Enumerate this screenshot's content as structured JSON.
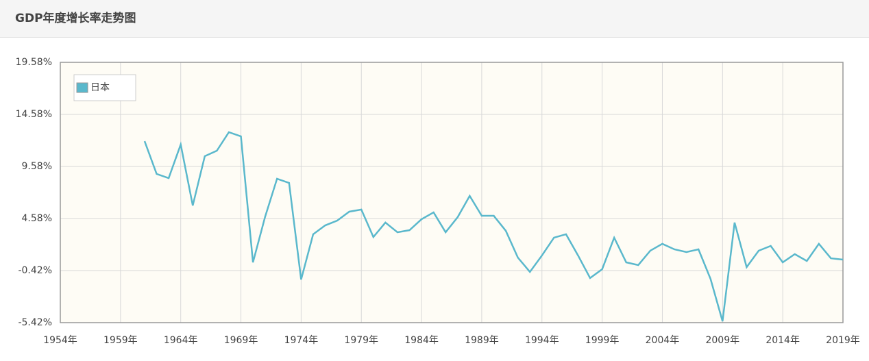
{
  "header": {
    "title": "GDP年度增长率走势图"
  },
  "chart_data": {
    "type": "line",
    "x": [
      1961,
      1962,
      1963,
      1964,
      1965,
      1966,
      1967,
      1968,
      1969,
      1970,
      1971,
      1972,
      1973,
      1974,
      1975,
      1976,
      1977,
      1978,
      1979,
      1980,
      1981,
      1982,
      1983,
      1984,
      1985,
      1986,
      1987,
      1988,
      1989,
      1990,
      1991,
      1992,
      1993,
      1994,
      1995,
      1996,
      1997,
      1998,
      1999,
      2000,
      2001,
      2002,
      2003,
      2004,
      2005,
      2006,
      2007,
      2008,
      2009,
      2010,
      2011,
      2012,
      2013,
      2014,
      2015,
      2016,
      2017,
      2018,
      2019
    ],
    "series": [
      {
        "name": "日本",
        "color": "#5ab8cc",
        "values": [
          12.01,
          8.86,
          8.46,
          11.69,
          5.83,
          10.57,
          11.09,
          12.87,
          12.47,
          0.37,
          4.71,
          8.4,
          8.0,
          -1.28,
          3.07,
          3.92,
          4.38,
          5.24,
          5.44,
          2.8,
          4.19,
          3.26,
          3.46,
          4.51,
          5.17,
          3.26,
          4.71,
          6.75,
          4.84,
          4.84,
          3.4,
          0.83,
          -0.55,
          1.03,
          2.74,
          3.07,
          1.03,
          -1.14,
          -0.29,
          2.74,
          0.37,
          0.11,
          1.49,
          2.15,
          1.62,
          1.36,
          1.62,
          -1.21,
          -5.29,
          4.19,
          -0.09,
          1.49,
          1.95,
          0.37,
          1.16,
          0.5,
          2.15,
          0.76,
          0.63
        ]
      }
    ],
    "xlim": [
      1954,
      2019
    ],
    "xticks": [
      {
        "value": 1954,
        "label": "1954年"
      },
      {
        "value": 1959,
        "label": "1959年"
      },
      {
        "value": 1964,
        "label": "1964年"
      },
      {
        "value": 1969,
        "label": "1969年"
      },
      {
        "value": 1974,
        "label": "1974年"
      },
      {
        "value": 1979,
        "label": "1979年"
      },
      {
        "value": 1984,
        "label": "1984年"
      },
      {
        "value": 1989,
        "label": "1989年"
      },
      {
        "value": 1994,
        "label": "1994年"
      },
      {
        "value": 1999,
        "label": "1999年"
      },
      {
        "value": 2004,
        "label": "2004年"
      },
      {
        "value": 2009,
        "label": "2009年"
      },
      {
        "value": 2014,
        "label": "2014年"
      },
      {
        "value": 2019,
        "label": "2019年"
      }
    ],
    "ylim": [
      -5.42,
      19.58
    ],
    "yticks": [
      {
        "value": -5.42,
        "label": "-5.42%"
      },
      {
        "value": -0.42,
        "label": "-0.42%"
      },
      {
        "value": 4.58,
        "label": "4.58%"
      },
      {
        "value": 9.58,
        "label": "9.58%"
      },
      {
        "value": 14.58,
        "label": "14.58%"
      },
      {
        "value": 19.58,
        "label": "19.58%"
      }
    ],
    "grid": true,
    "legend": "upper left"
  }
}
